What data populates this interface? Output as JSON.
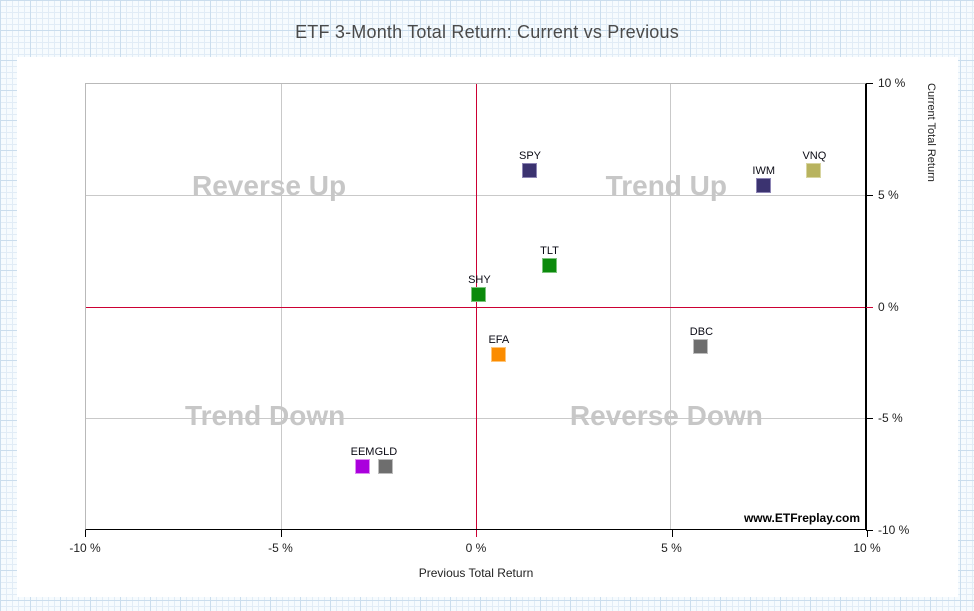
{
  "chart_data": {
    "type": "scatter",
    "title": "ETF 3-Month Total Return: Current vs Previous",
    "xlabel": "Previous Total Return",
    "ylabel": "Current Total Return",
    "xlim": [
      -10,
      10
    ],
    "ylim": [
      -10,
      10
    ],
    "x_ticks": [
      "-10 %",
      "-5 %",
      "0 %",
      "5 %",
      "10 %"
    ],
    "y_ticks": [
      "10 %",
      "5 %",
      "0 %",
      "-5 %",
      "-10 %"
    ],
    "grid": "major gridlines at -5 and 5; red zero crosshair lines",
    "legend": "none",
    "watermark": "www.ETFreplay.com",
    "quadrant_labels": [
      {
        "label": "Reverse Up",
        "x": -5.3,
        "y": 5.4
      },
      {
        "label": "Trend Up",
        "x": 4.9,
        "y": 5.4
      },
      {
        "label": "Trend Down",
        "x": -5.4,
        "y": -4.9
      },
      {
        "label": "Reverse Down",
        "x": 4.9,
        "y": -4.9
      }
    ],
    "points": [
      {
        "label": "SPY",
        "x": 1.4,
        "y": 6.1,
        "color": "#3b3370",
        "border": "#8d85b5"
      },
      {
        "label": "IWM",
        "x": 7.4,
        "y": 5.4,
        "color": "#3b3370",
        "border": "#8d85b5"
      },
      {
        "label": "VNQ",
        "x": 8.7,
        "y": 6.1,
        "color": "#b8b35e",
        "border": "#d8d5a0"
      },
      {
        "label": "TLT",
        "x": 1.9,
        "y": 1.8,
        "color": "#0c8a0c",
        "border": "#7cc47c"
      },
      {
        "label": "SHY",
        "x": 0.1,
        "y": 0.5,
        "color": "#0c8a0c",
        "border": "#7cc47c"
      },
      {
        "label": "EFA",
        "x": 0.6,
        "y": -2.2,
        "color": "#fb8c00",
        "border": "#ffc579"
      },
      {
        "label": "DBC",
        "x": 5.8,
        "y": -1.8,
        "color": "#6e6e6e",
        "border": "#bdbdbd"
      },
      {
        "label": "EEM",
        "x": -2.9,
        "y": -7.2,
        "color": "#aa00dd",
        "border": "#dd8cf0"
      },
      {
        "label": "GLD",
        "x": -2.3,
        "y": -7.2,
        "color": "#6e6e6e",
        "border": "#bdbdbd"
      }
    ]
  }
}
